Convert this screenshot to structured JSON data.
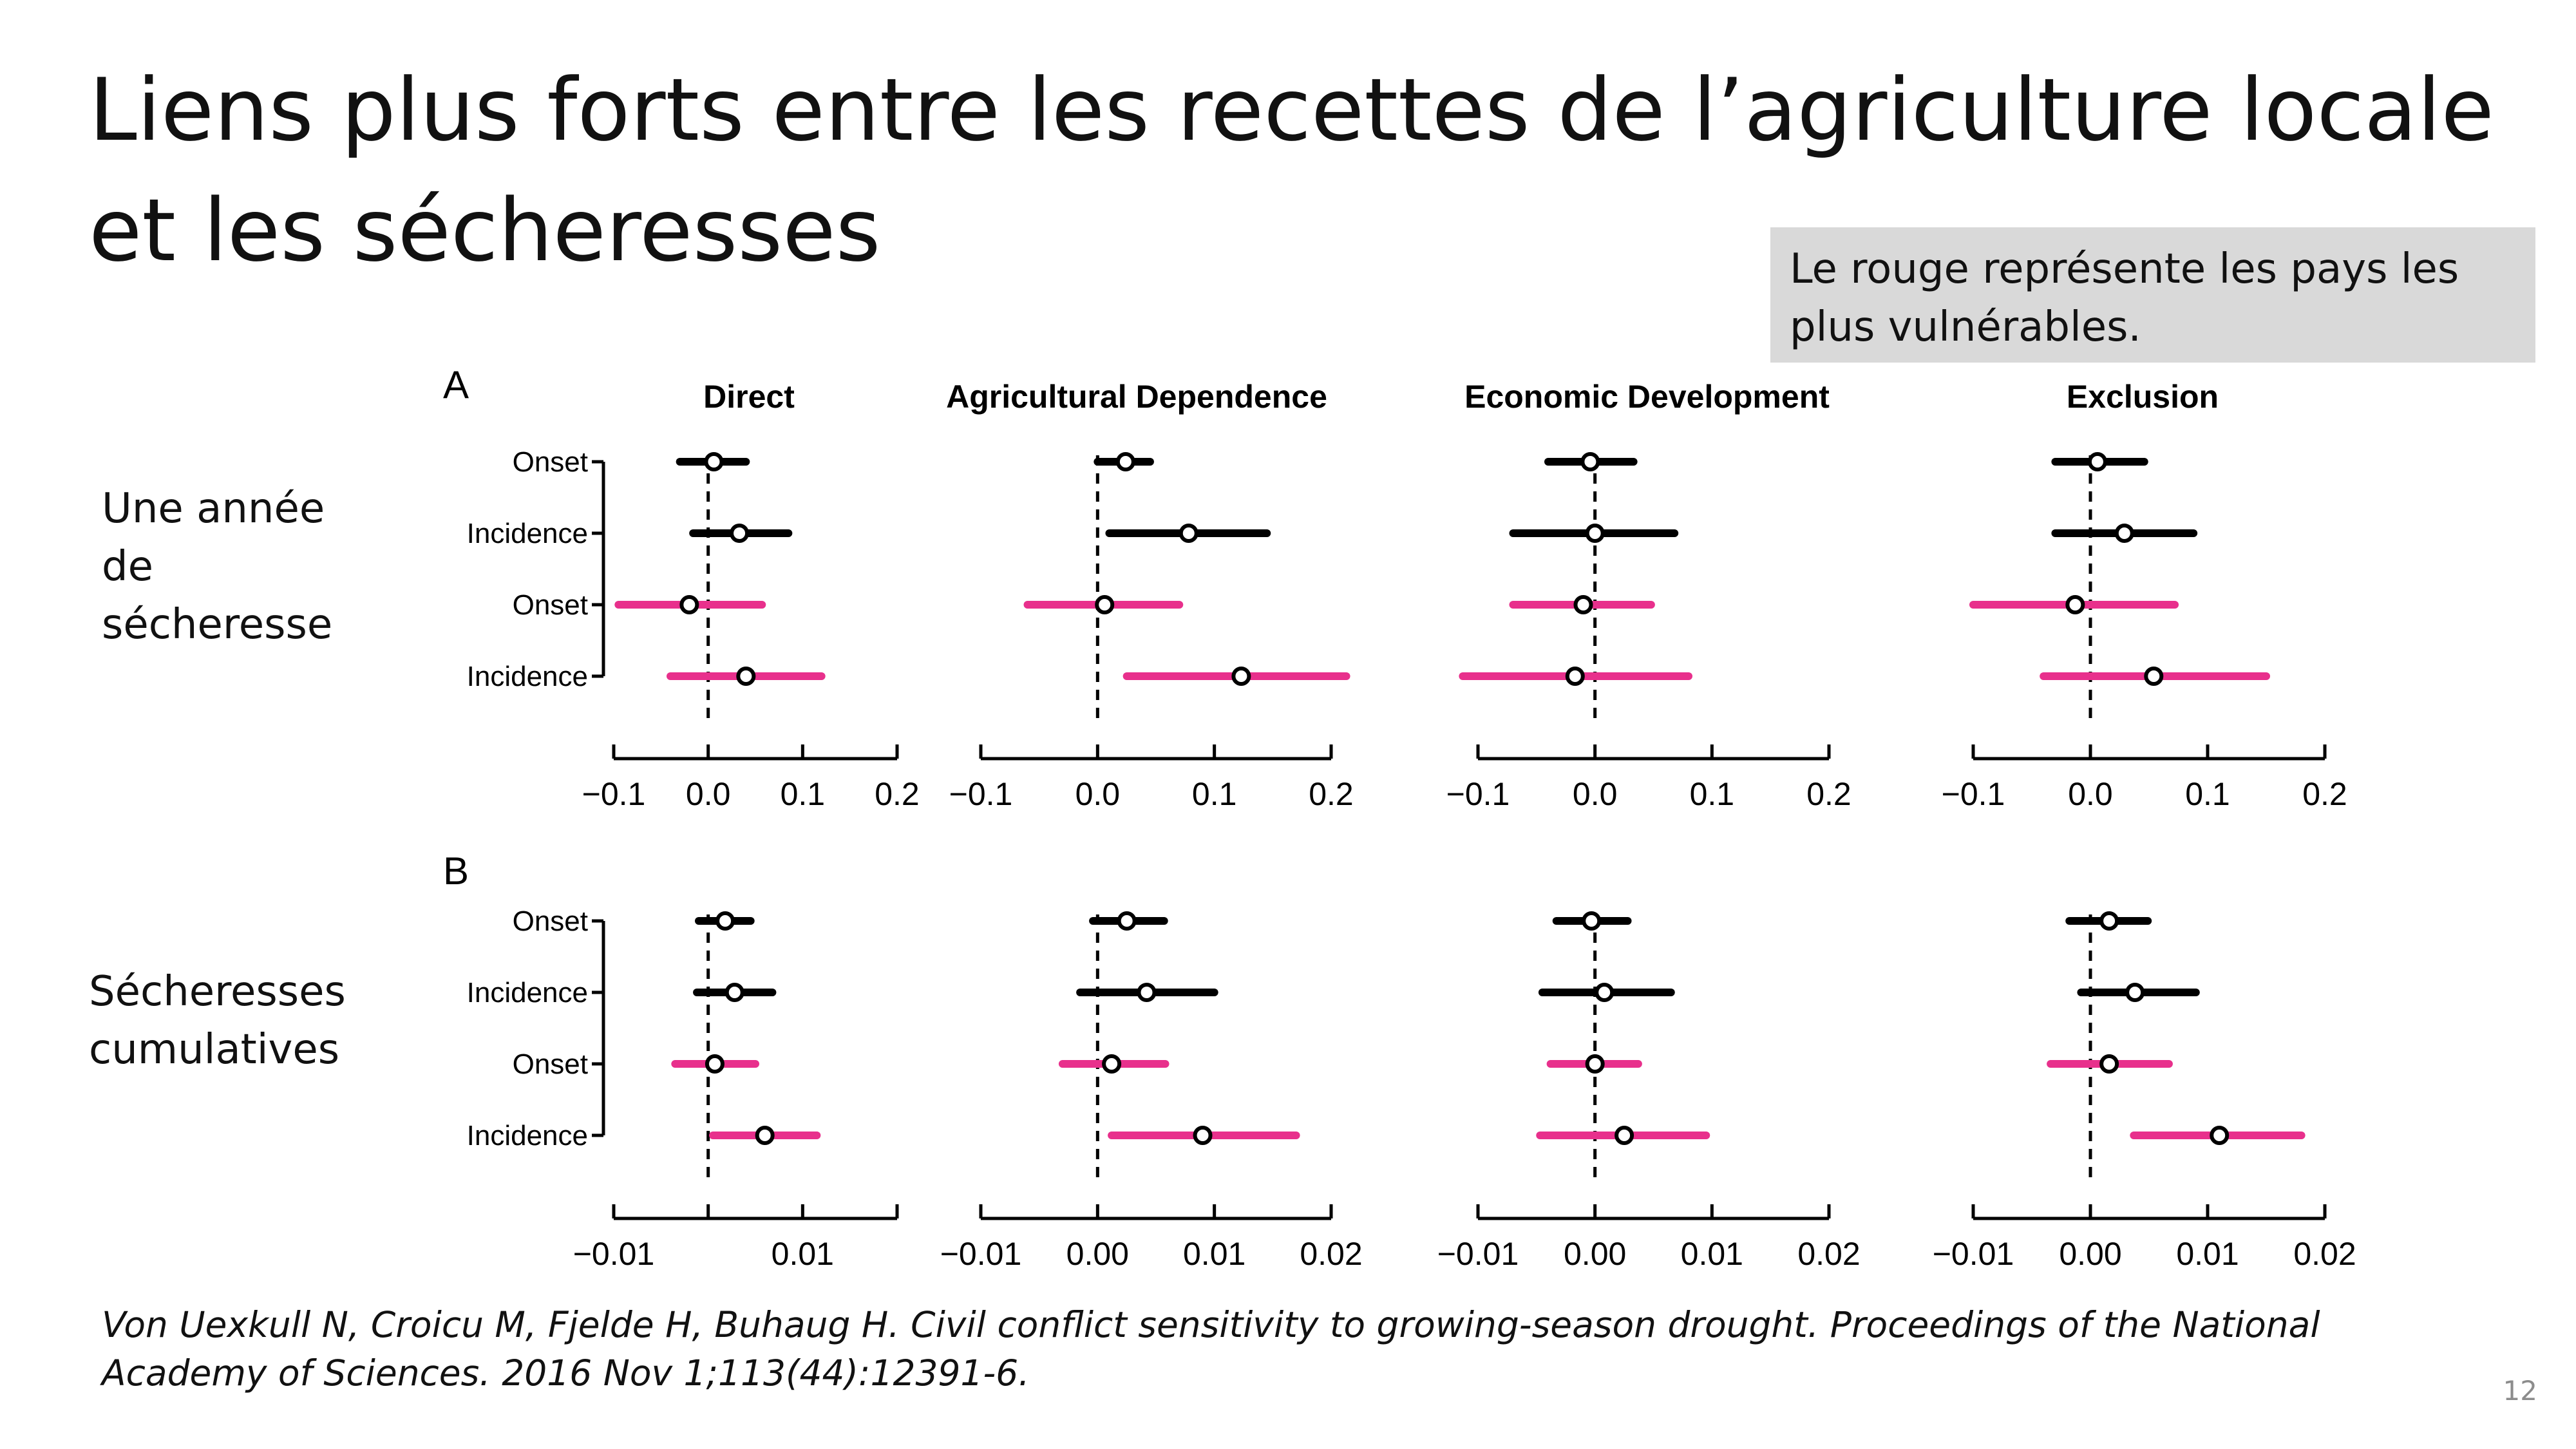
{
  "slide": {
    "title": "Liens plus forts entre les recettes de l’agriculture locale et les sécheresses",
    "note": "Le rouge représente les pays les plus vulnérables.",
    "row_label_a": "Une année de sécheresse",
    "row_label_b": "Sécheresses cumulatives",
    "citation": "Von Uexkull N, Croicu M, Fjelde H, Buhaug H. Civil conflict sensitivity to growing-season drought. Proceedings of the National Academy of Sciences. 2016 Nov 1;113(44):12391-6.",
    "page_number": "12"
  },
  "colors": {
    "general_countries": "#000000",
    "vulnerable_countries": "#e8308c",
    "point_fill": "#ffffff",
    "note_background": "#d9d9d9",
    "page_number": "#8c8c8c"
  },
  "chart_data": {
    "type": "forest",
    "row_labels": [
      "Onset",
      "Incidence",
      "Onset",
      "Incidence"
    ],
    "row_groups": [
      "general",
      "general",
      "vulnerable",
      "vulnerable"
    ],
    "reference_line": 0,
    "sections": [
      {
        "label": "A",
        "xlim": [
          -0.1,
          0.2
        ],
        "ticks": [
          -0.1,
          0.0,
          0.1,
          0.2
        ],
        "tick_labels": [
          "−0.1",
          "0.0",
          "0.1",
          "0.2"
        ],
        "panels": [
          {
            "title": "Direct",
            "show_first_tick_label": true,
            "estimates": [
              {
                "est": 0.006,
                "lo": -0.03,
                "hi": 0.04
              },
              {
                "est": 0.033,
                "lo": -0.016,
                "hi": 0.085
              },
              {
                "est": -0.02,
                "lo": -0.095,
                "hi": 0.057
              },
              {
                "est": 0.04,
                "lo": -0.04,
                "hi": 0.12
              }
            ]
          },
          {
            "title": "Agricultural Dependence",
            "show_first_tick_label": true,
            "estimates": [
              {
                "est": 0.024,
                "lo": 0.0,
                "hi": 0.045
              },
              {
                "est": 0.078,
                "lo": 0.01,
                "hi": 0.145
              },
              {
                "est": 0.006,
                "lo": -0.06,
                "hi": 0.07
              },
              {
                "est": 0.123,
                "lo": 0.025,
                "hi": 0.213
              }
            ]
          },
          {
            "title": "Economic Development",
            "show_first_tick_label": true,
            "estimates": [
              {
                "est": -0.004,
                "lo": -0.04,
                "hi": 0.033
              },
              {
                "est": 0.0,
                "lo": -0.07,
                "hi": 0.068
              },
              {
                "est": -0.01,
                "lo": -0.07,
                "hi": 0.048
              },
              {
                "est": -0.017,
                "lo": -0.113,
                "hi": 0.08
              }
            ]
          },
          {
            "title": "Exclusion",
            "show_first_tick_label": true,
            "estimates": [
              {
                "est": 0.006,
                "lo": -0.03,
                "hi": 0.046
              },
              {
                "est": 0.029,
                "lo": -0.03,
                "hi": 0.088
              },
              {
                "est": -0.013,
                "lo": -0.1,
                "hi": 0.072
              },
              {
                "est": 0.054,
                "lo": -0.04,
                "hi": 0.15
              }
            ]
          }
        ]
      },
      {
        "label": "B",
        "xlim": [
          -0.01,
          0.02
        ],
        "ticks": [
          -0.01,
          0.0,
          0.01,
          0.02
        ],
        "tick_labels": [
          "−0.01",
          "0.00",
          "0.01",
          "0.02"
        ],
        "panels": [
          {
            "title": "",
            "show_first_tick_label": true,
            "tick_labels_override": [
              "−0.01",
              "",
              "0.01",
              ""
            ],
            "estimates": [
              {
                "est": 0.0018,
                "lo": -0.001,
                "hi": 0.0045
              },
              {
                "est": 0.0028,
                "lo": -0.0012,
                "hi": 0.0068
              },
              {
                "est": 0.0007,
                "lo": -0.0035,
                "hi": 0.005
              },
              {
                "est": 0.006,
                "lo": 0.0005,
                "hi": 0.0115
              }
            ]
          },
          {
            "title": "",
            "show_first_tick_label": true,
            "estimates": [
              {
                "est": 0.0025,
                "lo": -0.0004,
                "hi": 0.0057
              },
              {
                "est": 0.0042,
                "lo": -0.0015,
                "hi": 0.01
              },
              {
                "est": 0.0012,
                "lo": -0.003,
                "hi": 0.0058
              },
              {
                "est": 0.009,
                "lo": 0.0012,
                "hi": 0.017
              }
            ]
          },
          {
            "title": "",
            "show_first_tick_label": true,
            "estimates": [
              {
                "est": -0.0003,
                "lo": -0.0033,
                "hi": 0.0028
              },
              {
                "est": 0.0008,
                "lo": -0.0045,
                "hi": 0.0065
              },
              {
                "est": 0.0,
                "lo": -0.0038,
                "hi": 0.0037
              },
              {
                "est": 0.0025,
                "lo": -0.0047,
                "hi": 0.0095
              }
            ]
          },
          {
            "title": "",
            "show_first_tick_label": true,
            "estimates": [
              {
                "est": 0.0016,
                "lo": -0.0018,
                "hi": 0.0049
              },
              {
                "est": 0.0038,
                "lo": -0.0008,
                "hi": 0.009
              },
              {
                "est": 0.0016,
                "lo": -0.0034,
                "hi": 0.0067
              },
              {
                "est": 0.011,
                "lo": 0.0037,
                "hi": 0.018
              }
            ]
          }
        ]
      }
    ]
  }
}
